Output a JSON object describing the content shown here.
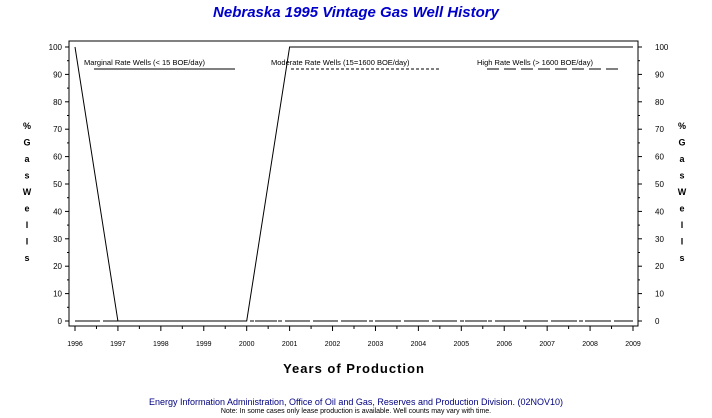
{
  "chart_data": {
    "type": "line",
    "title": "Nebraska 1995 Vintage Gas Well History",
    "xlabel": "Years of Production",
    "ylabel": "% Gas Wells",
    "ylabel_right": "% Gas Wells",
    "x": [
      1996,
      1997,
      1998,
      1999,
      2000,
      2001,
      2002,
      2003,
      2004,
      2005,
      2006,
      2007,
      2008,
      2009
    ],
    "xlim": [
      1996,
      2009
    ],
    "ylim": [
      0,
      100
    ],
    "yticks": [
      0,
      10,
      20,
      30,
      40,
      50,
      60,
      70,
      80,
      90,
      100
    ],
    "grid": false,
    "legend_placement": "top",
    "series": [
      {
        "name": "Marginal Rate Wells (<  15 BOE/day)",
        "style": "solid",
        "values": [
          100,
          0,
          0,
          0,
          0,
          100,
          100,
          100,
          100,
          100,
          100,
          100,
          100,
          100
        ]
      },
      {
        "name": "Moderate Rate Wells (15=1600 BOE/day)",
        "style": "short-dash",
        "values": [
          0,
          0,
          0,
          0,
          0,
          0,
          0,
          0,
          0,
          0,
          0,
          0,
          0,
          0
        ]
      },
      {
        "name": "High Rate Wells (> 1600 BOE/day)",
        "style": "long-dash",
        "values": [
          0,
          0,
          0,
          0,
          0,
          0,
          0,
          0,
          0,
          0,
          0,
          0,
          0,
          0
        ]
      }
    ]
  },
  "footer": {
    "source": "Energy Information Administration, Office of Oil and Gas, Reserves and Production Division. (02NOV10)",
    "note": "Note: In some cases only lease production is available. Well counts may vary with time."
  }
}
